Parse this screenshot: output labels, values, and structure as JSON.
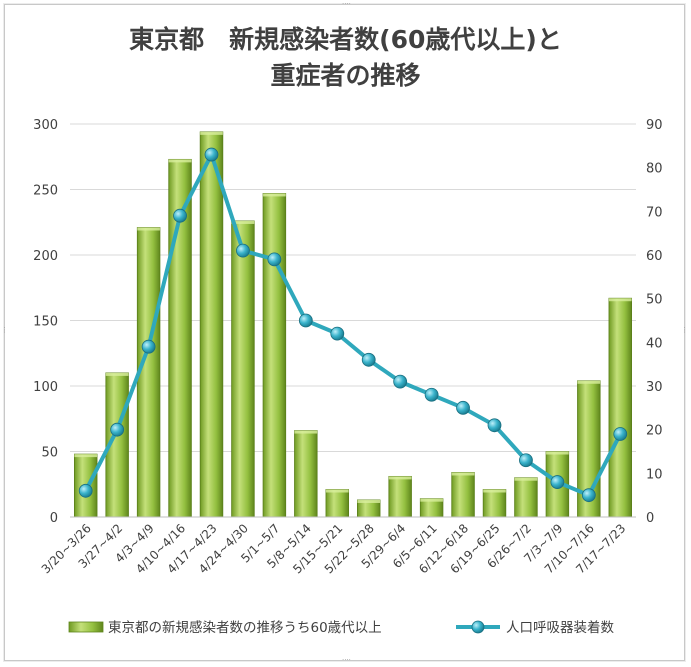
{
  "chart_data": {
    "type": "bar",
    "title": [
      "東京都　新規感染者数(60歳代以上)と",
      "重症者の推移"
    ],
    "categories": [
      "3/20~3/26",
      "3/27~4/2",
      "4/3~4/9",
      "4/10~4/16",
      "4/17~4/23",
      "4/24~4/30",
      "5/1~5/7",
      "5/8~5/14",
      "5/15~5/21",
      "5/22~5/28",
      "5/29~6/4",
      "6/5~6/11",
      "6/12~6/18",
      "6/19~6/25",
      "6/26~7/2",
      "7/3~7/9",
      "7/10~7/16",
      "7/17~7/23"
    ],
    "series": [
      {
        "name": "東京都の新規感染者数の推移うち60歳代以上",
        "type": "bar",
        "axis": "left",
        "color": "#8db83a",
        "values": [
          48,
          110,
          221,
          273,
          294,
          226,
          247,
          66,
          21,
          13,
          31,
          14,
          34,
          21,
          30,
          50,
          104,
          167
        ]
      },
      {
        "name": "人口呼吸器装着数",
        "type": "line",
        "axis": "right",
        "color": "#2fa8bc",
        "values": [
          6,
          20,
          39,
          69,
          83,
          61,
          59,
          45,
          42,
          36,
          31,
          28,
          25,
          21,
          13,
          8,
          5,
          19
        ]
      }
    ],
    "y_left": {
      "min": 0,
      "max": 300,
      "ticks": [
        0,
        50,
        100,
        150,
        200,
        250,
        300
      ]
    },
    "y_right": {
      "min": 0,
      "max": 90,
      "ticks": [
        0,
        10,
        20,
        30,
        40,
        50,
        60,
        70,
        80,
        90
      ]
    },
    "grid": true,
    "legend_position": "bottom"
  }
}
